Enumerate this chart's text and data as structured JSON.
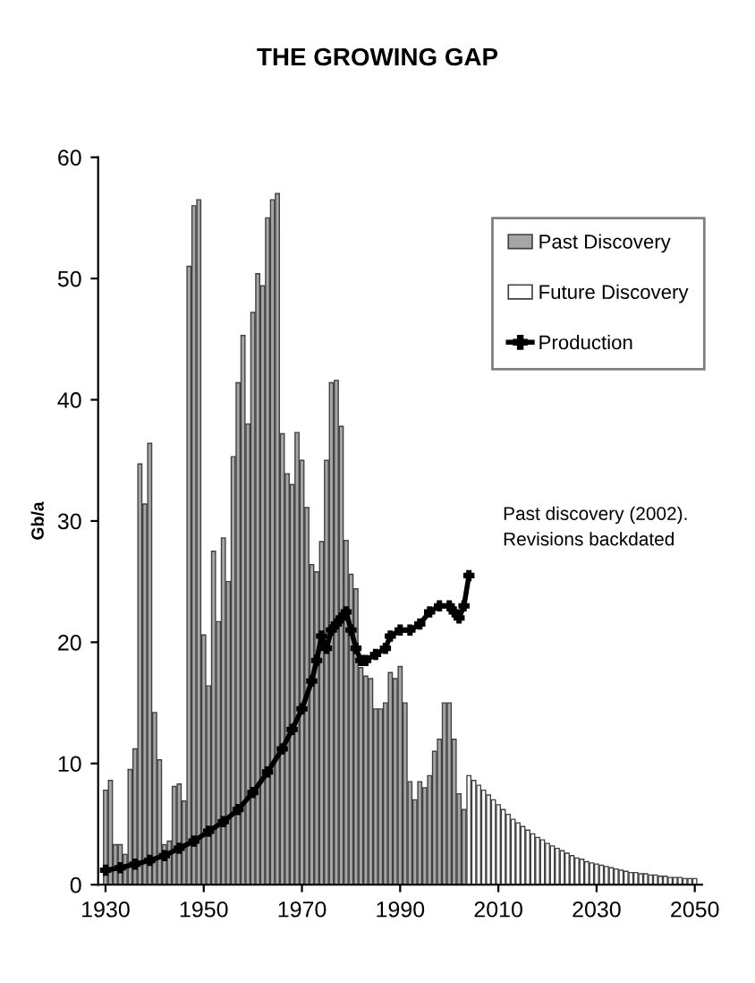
{
  "chart_data": {
    "type": "bar",
    "title": "THE GROWING GAP",
    "ylabel": "Gb/a",
    "xlim": [
      1928.5,
      2051.5
    ],
    "xticks": [
      1930,
      1950,
      1970,
      1990,
      2010,
      2030,
      2050
    ],
    "ylim": [
      0,
      60
    ],
    "yticks": [
      0,
      10,
      20,
      30,
      40,
      50,
      60
    ],
    "grid": false,
    "legend": "top right",
    "annotations": [
      "Past discovery (2002).\nRevisions backdated"
    ],
    "series": [
      {
        "name": "Past Discovery",
        "color": "#a6a6a6",
        "x": [
          1930,
          1931,
          1932,
          1933,
          1934,
          1935,
          1936,
          1937,
          1938,
          1939,
          1940,
          1941,
          1942,
          1943,
          1944,
          1945,
          1946,
          1947,
          1948,
          1949,
          1950,
          1951,
          1952,
          1953,
          1954,
          1955,
          1956,
          1957,
          1958,
          1959,
          1960,
          1961,
          1962,
          1963,
          1964,
          1965,
          1966,
          1967,
          1968,
          1969,
          1970,
          1971,
          1972,
          1973,
          1974,
          1975,
          1976,
          1977,
          1978,
          1979,
          1980,
          1981,
          1982,
          1983,
          1984,
          1985,
          1986,
          1987,
          1988,
          1989,
          1990,
          1991,
          1992,
          1993,
          1994,
          1995,
          1996,
          1997,
          1998,
          1999,
          2000,
          2001,
          2002,
          2003
        ],
        "values": [
          7.8,
          8.6,
          3.3,
          3.3,
          2.5,
          9.5,
          11.2,
          34.7,
          31.4,
          36.4,
          14.2,
          10.3,
          3.3,
          3.6,
          8.1,
          8.3,
          6.9,
          51,
          56,
          56.5,
          20.6,
          16.4,
          27.5,
          21.7,
          28.6,
          25,
          35.3,
          41.4,
          45.3,
          38,
          47.2,
          50.4,
          49.4,
          55,
          56.5,
          57,
          37.2,
          33.9,
          33,
          37.3,
          35,
          31.1,
          26.4,
          25.8,
          28.3,
          35,
          41.4,
          41.6,
          37.8,
          28.4,
          25.6,
          24.4,
          17.9,
          17.2,
          17,
          14.5,
          14.5,
          15,
          17.5,
          17,
          18,
          15,
          8.5,
          7,
          8.5,
          8,
          9,
          11,
          12,
          15,
          15,
          12,
          7.5,
          6.2
        ]
      },
      {
        "name": "Future Discovery",
        "color": "#ffffff",
        "x": [
          2004,
          2005,
          2006,
          2007,
          2008,
          2009,
          2010,
          2011,
          2012,
          2013,
          2014,
          2015,
          2016,
          2017,
          2018,
          2019,
          2020,
          2021,
          2022,
          2023,
          2024,
          2025,
          2026,
          2027,
          2028,
          2029,
          2030,
          2031,
          2032,
          2033,
          2034,
          2035,
          2036,
          2037,
          2038,
          2039,
          2040,
          2041,
          2042,
          2043,
          2044,
          2045,
          2046,
          2047,
          2048,
          2049,
          2050
        ],
        "values": [
          9,
          8.6,
          8.2,
          7.8,
          7.4,
          7.0,
          6.6,
          6.2,
          5.8,
          5.4,
          5.1,
          4.8,
          4.5,
          4.2,
          3.9,
          3.7,
          3.4,
          3.2,
          3.0,
          2.8,
          2.6,
          2.4,
          2.2,
          2.1,
          1.9,
          1.8,
          1.7,
          1.6,
          1.5,
          1.4,
          1.3,
          1.2,
          1.1,
          1.0,
          1.0,
          0.9,
          0.9,
          0.8,
          0.8,
          0.7,
          0.7,
          0.6,
          0.6,
          0.6,
          0.5,
          0.5,
          0.5
        ]
      },
      {
        "name": "Production",
        "type": "line",
        "color": "#000000",
        "marker": "cross",
        "line_style": "solid",
        "x": [
          1930,
          1933,
          1936,
          1939,
          1942,
          1945,
          1948,
          1951,
          1954,
          1957,
          1960,
          1963,
          1966,
          1968,
          1970,
          1972,
          1973,
          1974,
          1975,
          1976,
          1977,
          1978,
          1979,
          1980,
          1981,
          1982,
          1983,
          1985,
          1987,
          1988,
          1990,
          1992,
          1994,
          1996,
          1998,
          2000,
          2001,
          2002,
          2003,
          2004
        ],
        "values": [
          1.2,
          1.4,
          1.7,
          2.0,
          2.4,
          3.0,
          3.6,
          4.4,
          5.2,
          6.2,
          7.6,
          9.3,
          11.2,
          12.8,
          14.5,
          16.8,
          18.5,
          20.5,
          19.5,
          21,
          21.5,
          22,
          22.5,
          21,
          19.5,
          18.5,
          18.5,
          19,
          19.5,
          20.5,
          21,
          21,
          21.5,
          22.5,
          23,
          23,
          22.5,
          22,
          23,
          25.5
        ]
      }
    ]
  }
}
